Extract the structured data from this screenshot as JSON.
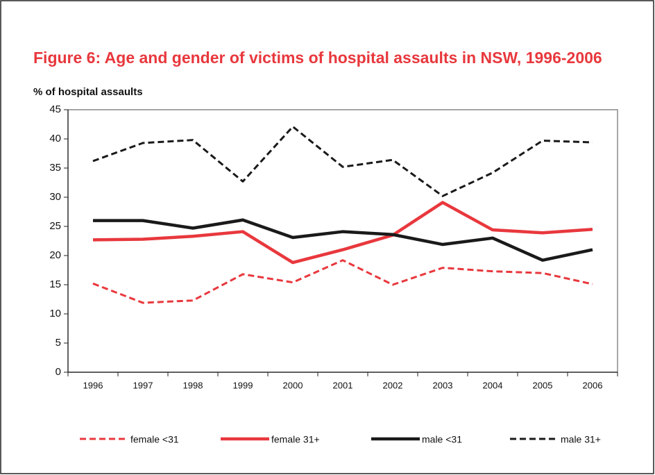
{
  "chart_data": {
    "type": "line",
    "title": "Figure 6: Age and gender of victims of hospital assaults in NSW, 1996-2006",
    "y_label": "% of hospital assaults",
    "categories": [
      "1996",
      "1997",
      "1998",
      "1999",
      "2000",
      "2001",
      "2002",
      "2003",
      "2004",
      "2005",
      "2006"
    ],
    "series": [
      {
        "name": "female <31",
        "color": "#e8383d",
        "line_style": "dashed",
        "values": [
          15.2,
          11.9,
          12.3,
          16.8,
          15.4,
          19.2,
          15.0,
          17.9,
          17.3,
          17.0,
          15.1
        ]
      },
      {
        "name": "female 31+",
        "color": "#e8383d",
        "line_style": "solid",
        "values": [
          22.7,
          22.8,
          23.3,
          24.1,
          18.8,
          21.0,
          23.5,
          29.1,
          24.4,
          23.9,
          24.5
        ]
      },
      {
        "name": "male <31",
        "color": "#1a1a1a",
        "line_style": "solid",
        "values": [
          26.0,
          26.0,
          24.7,
          26.1,
          23.1,
          24.1,
          23.6,
          21.9,
          23.0,
          19.2,
          21.0
        ]
      },
      {
        "name": "male 31+",
        "color": "#1a1a1a",
        "line_style": "dashed",
        "values": [
          36.2,
          39.3,
          39.8,
          32.7,
          42.1,
          35.2,
          36.4,
          30.2,
          34.2,
          39.7,
          39.4
        ]
      }
    ],
    "ylim": [
      0,
      45
    ],
    "yticks": [
      0,
      5,
      10,
      15,
      20,
      25,
      30,
      35,
      40,
      45
    ],
    "grid": false,
    "legend": "bottom"
  }
}
